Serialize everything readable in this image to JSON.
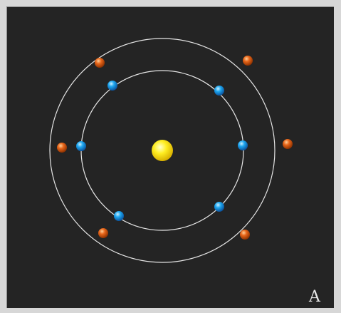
{
  "panel_label": "A",
  "colors": {
    "background": "#242424",
    "frame": "#d7d7d7",
    "orbit": "#e6e6e6",
    "nucleus": "#ffee22",
    "inner_electron": "#1ea8f0",
    "outer_electron": "#e8661a"
  },
  "diagram": {
    "nucleus_count": 1,
    "shells": [
      {
        "name": "inner-shell",
        "electrons": 6,
        "color_key": "inner_electron"
      },
      {
        "name": "outer-shell",
        "electrons": 6,
        "color_key": "outer_electron"
      }
    ]
  }
}
